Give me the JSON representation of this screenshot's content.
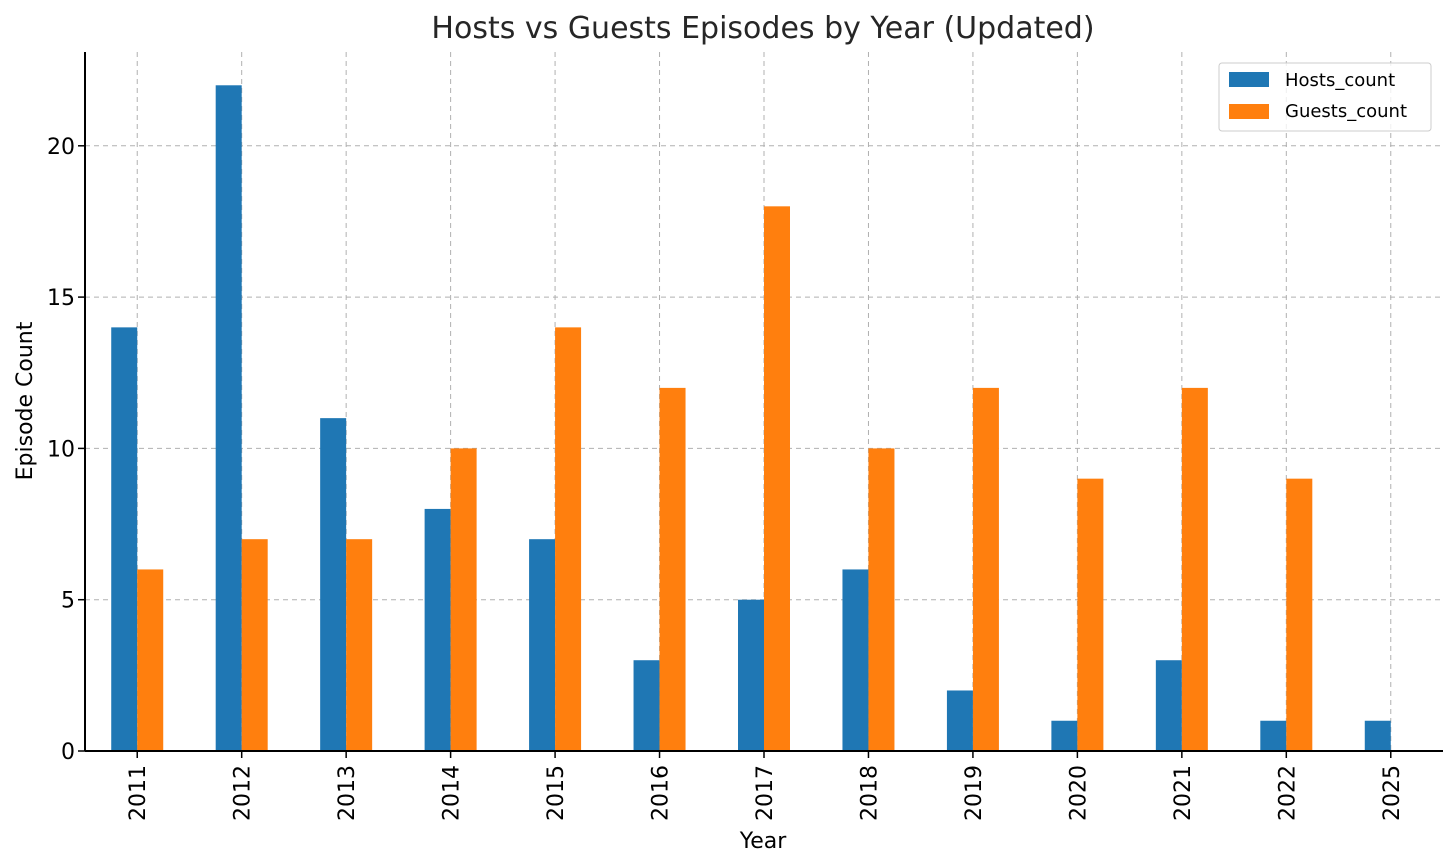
{
  "chart_data": {
    "type": "bar",
    "title": "Hosts vs Guests Episodes by Year (Updated)",
    "xlabel": "Year",
    "ylabel": "Episode Count",
    "categories": [
      "2011",
      "2012",
      "2013",
      "2014",
      "2015",
      "2016",
      "2017",
      "2018",
      "2019",
      "2020",
      "2021",
      "2022",
      "2025"
    ],
    "series": [
      {
        "name": "Hosts_count",
        "color": "#1f77b4",
        "values": [
          14,
          22,
          11,
          8,
          7,
          3,
          5,
          6,
          2,
          1,
          3,
          1,
          1
        ]
      },
      {
        "name": "Guests_count",
        "color": "#ff7f0e",
        "values": [
          6,
          7,
          7,
          10,
          14,
          12,
          18,
          10,
          12,
          9,
          12,
          9,
          0
        ]
      }
    ],
    "yticks": [
      "0",
      "5",
      "10",
      "15",
      "20"
    ],
    "ylim": [
      0,
      23.1
    ],
    "grid": true,
    "legend_position": "top-right"
  }
}
